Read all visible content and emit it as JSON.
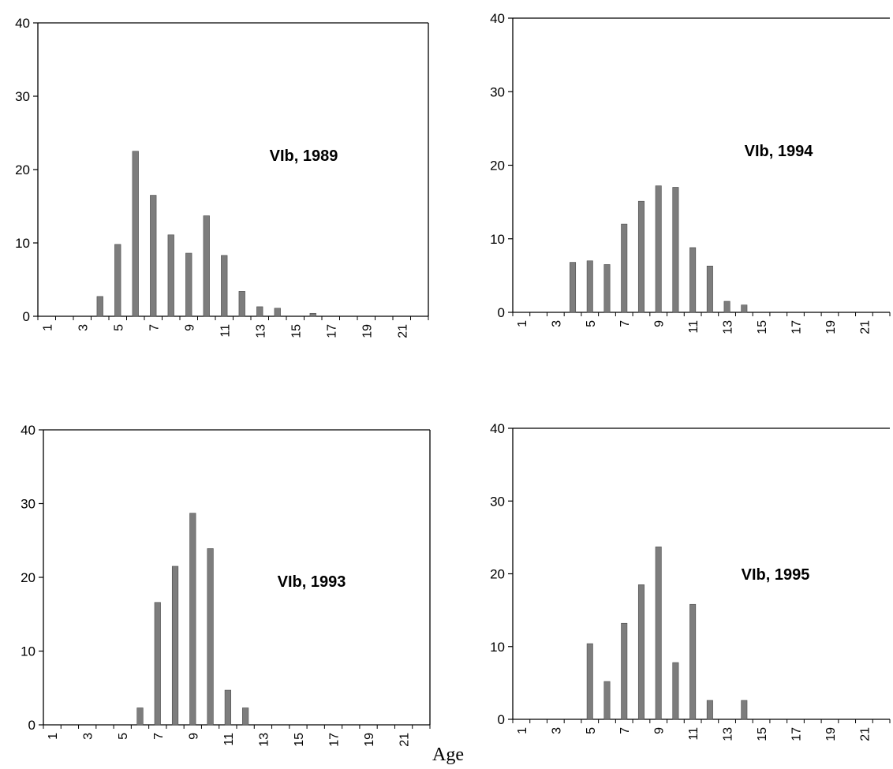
{
  "chart_data": [
    {
      "type": "bar",
      "title": "VIb, 1989",
      "xlabel": "",
      "ylabel": "",
      "ylim": [
        0,
        40
      ],
      "yticks": [
        0,
        10,
        20,
        30,
        40
      ],
      "x": [
        1,
        2,
        3,
        4,
        5,
        6,
        7,
        8,
        9,
        10,
        11,
        12,
        13,
        14,
        15,
        16,
        17,
        18,
        19,
        20,
        21,
        22
      ],
      "xtick_labels": [
        "1",
        "3",
        "5",
        "7",
        "9",
        "11",
        "13",
        "15",
        "17",
        "19",
        "21"
      ],
      "values": [
        0,
        0,
        0,
        2.7,
        9.8,
        22.5,
        16.5,
        11.1,
        8.6,
        13.7,
        8.3,
        3.4,
        1.3,
        1.1,
        0,
        0.4,
        0,
        0,
        0,
        0,
        0,
        0
      ],
      "grid": false,
      "frame": "full box",
      "bar_color": "#7d7d7d"
    },
    {
      "type": "bar",
      "title": "VIb, 1994",
      "xlabel": "",
      "ylabel": "",
      "ylim": [
        0,
        40
      ],
      "yticks": [
        0,
        10,
        20,
        30,
        40
      ],
      "x": [
        1,
        2,
        3,
        4,
        5,
        6,
        7,
        8,
        9,
        10,
        11,
        12,
        13,
        14,
        15,
        16,
        17,
        18,
        19,
        20,
        21,
        22
      ],
      "xtick_labels": [
        "1",
        "3",
        "5",
        "7",
        "9",
        "11",
        "13",
        "15",
        "17",
        "19",
        "21"
      ],
      "values": [
        0,
        0,
        0,
        6.8,
        7.0,
        6.5,
        12.0,
        15.1,
        17.2,
        17.0,
        8.8,
        6.3,
        1.5,
        1.0,
        0,
        0,
        0,
        0,
        0,
        0,
        0,
        0
      ],
      "grid": false,
      "frame": "left and top only",
      "bar_color": "#7d7d7d"
    },
    {
      "type": "bar",
      "title": "VIb, 1993",
      "xlabel": "",
      "ylabel": "",
      "ylim": [
        0,
        40
      ],
      "yticks": [
        0,
        10,
        20,
        30,
        40
      ],
      "x": [
        1,
        2,
        3,
        4,
        5,
        6,
        7,
        8,
        9,
        10,
        11,
        12,
        13,
        14,
        15,
        16,
        17,
        18,
        19,
        20,
        21,
        22
      ],
      "xtick_labels": [
        "1",
        "3",
        "5",
        "7",
        "9",
        "11",
        "13",
        "15",
        "17",
        "19",
        "21"
      ],
      "values": [
        0,
        0,
        0,
        0,
        0,
        2.3,
        16.6,
        21.5,
        28.7,
        23.9,
        4.7,
        2.3,
        0,
        0,
        0,
        0,
        0,
        0,
        0,
        0,
        0,
        0
      ],
      "grid": false,
      "frame": "full box",
      "bar_color": "#7d7d7d"
    },
    {
      "type": "bar",
      "title": "VIb, 1995",
      "xlabel": "",
      "ylabel": "",
      "ylim": [
        0,
        40
      ],
      "yticks": [
        0,
        10,
        20,
        30,
        40
      ],
      "x": [
        1,
        2,
        3,
        4,
        5,
        6,
        7,
        8,
        9,
        10,
        11,
        12,
        13,
        14,
        15,
        16,
        17,
        18,
        19,
        20,
        21,
        22
      ],
      "xtick_labels": [
        "1",
        "3",
        "5",
        "7",
        "9",
        "11",
        "13",
        "15",
        "17",
        "19",
        "21"
      ],
      "values": [
        0,
        0,
        0,
        0,
        10.4,
        5.2,
        13.2,
        18.5,
        23.7,
        7.8,
        15.8,
        2.6,
        0,
        2.6,
        0,
        0,
        0,
        0,
        0,
        0,
        0,
        0
      ],
      "grid": false,
      "frame": "left and top only",
      "bar_color": "#7d7d7d"
    }
  ],
  "figure": {
    "shared_xlabel": "Age",
    "axis_color": "#000000",
    "text_color": "#000000"
  }
}
